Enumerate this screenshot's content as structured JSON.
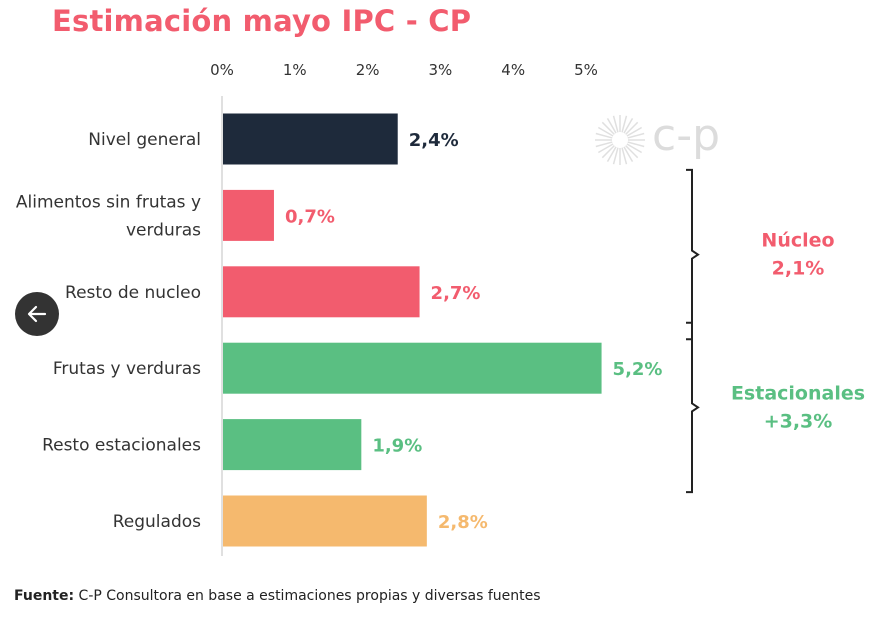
{
  "chart_data": {
    "type": "bar",
    "orientation": "horizontal",
    "title": "Estimación mayo IPC - CP",
    "categories": [
      "Nivel general",
      "Alimentos sin frutas y verduras",
      "Resto de nucleo",
      "Frutas y verduras",
      "Resto estacionales",
      "Regulados"
    ],
    "values": [
      2.4,
      0.7,
      2.7,
      5.2,
      1.9,
      2.8
    ],
    "value_labels": [
      "2,4%",
      "0,7%",
      "2,7%",
      "5,2%",
      "1,9%",
      "2,8%"
    ],
    "colors": [
      "#1e2a3b",
      "#f25c6e",
      "#f25c6e",
      "#5abf82",
      "#5abf82",
      "#f5b96e"
    ],
    "label_colors": [
      "#1e2a3b",
      "#f25c6e",
      "#f25c6e",
      "#5abf82",
      "#5abf82",
      "#f5b96e"
    ],
    "xticks": [
      "0%",
      "1%",
      "2%",
      "3%",
      "4%",
      "5%"
    ],
    "xlim": [
      0,
      5
    ],
    "axis_position": "top",
    "grid": false,
    "groups": [
      {
        "name": "Núcleo",
        "value": "2,1%",
        "color": "#f25c6e",
        "from": 1,
        "to": 2
      },
      {
        "name": "Estacionales",
        "value": "+3,3%",
        "color": "#5abf82",
        "from": 3,
        "to": 4
      }
    ]
  },
  "source": {
    "label": "Fuente:",
    "text": " C-P Consultora en base a estimaciones propias y diversas fuentes"
  },
  "logo": {
    "text": "c-p",
    "icon": "sunburst-icon"
  },
  "nav": {
    "back_icon": "arrow-left-icon"
  }
}
